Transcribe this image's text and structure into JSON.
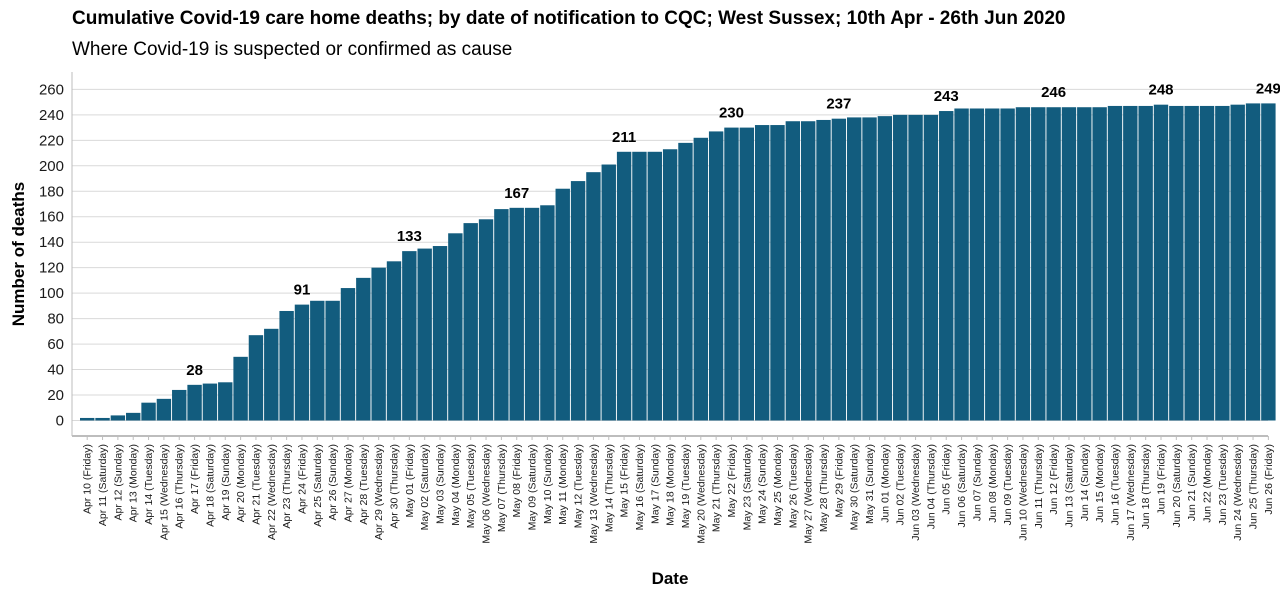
{
  "chart_data": {
    "type": "bar",
    "title": "Cumulative Covid-19 care home deaths; by date of notification to CQC; West Sussex; 10th Apr - 26th Jun 2020",
    "subtitle": "Where Covid-19 is suspected or confirmed as cause",
    "xlabel": "Date",
    "ylabel": "Number of deaths",
    "ylim": [
      0,
      270
    ],
    "yticks": [
      0,
      20,
      40,
      60,
      80,
      100,
      120,
      140,
      160,
      180,
      200,
      220,
      240,
      260
    ],
    "grid": true,
    "bar_color": "#125c7e",
    "categories": [
      "Apr 10 (Friday)",
      "Apr 11 (Saturday)",
      "Apr 12 (Sunday)",
      "Apr 13 (Monday)",
      "Apr 14 (Tuesday)",
      "Apr 15 (Wednesday)",
      "Apr 16 (Thursday)",
      "Apr 17 (Friday)",
      "Apr 18 (Saturday)",
      "Apr 19 (Sunday)",
      "Apr 20 (Monday)",
      "Apr 21 (Tuesday)",
      "Apr 22 (Wednesday)",
      "Apr 23 (Thursday)",
      "Apr 24 (Friday)",
      "Apr 25 (Saturday)",
      "Apr 26 (Sunday)",
      "Apr 27 (Monday)",
      "Apr 28 (Tuesday)",
      "Apr 29 (Wednesday)",
      "Apr 30 (Thursday)",
      "May 01 (Friday)",
      "May 02 (Saturday)",
      "May 03 (Sunday)",
      "May 04 (Monday)",
      "May 05 (Tuesday)",
      "May 06 (Wednesday)",
      "May 07 (Thursday)",
      "May 08 (Friday)",
      "May 09 (Saturday)",
      "May 10 (Sunday)",
      "May 11 (Monday)",
      "May 12 (Tuesday)",
      "May 13 (Wednesday)",
      "May 14 (Thursday)",
      "May 15 (Friday)",
      "May 16 (Saturday)",
      "May 17 (Sunday)",
      "May 18 (Monday)",
      "May 19 (Tuesday)",
      "May 20 (Wednesday)",
      "May 21 (Thursday)",
      "May 22 (Friday)",
      "May 23 (Saturday)",
      "May 24 (Sunday)",
      "May 25 (Monday)",
      "May 26 (Tuesday)",
      "May 27 (Wednesday)",
      "May 28 (Thursday)",
      "May 29 (Friday)",
      "May 30 (Saturday)",
      "May 31 (Sunday)",
      "Jun 01 (Monday)",
      "Jun 02 (Tuesday)",
      "Jun 03 (Wednesday)",
      "Jun 04 (Thursday)",
      "Jun 05 (Friday)",
      "Jun 06 (Saturday)",
      "Jun 07 (Sunday)",
      "Jun 08 (Monday)",
      "Jun 09 (Tuesday)",
      "Jun 10 (Wednesday)",
      "Jun 11 (Thursday)",
      "Jun 12 (Friday)",
      "Jun 13 (Saturday)",
      "Jun 14 (Sunday)",
      "Jun 15 (Monday)",
      "Jun 16 (Tuesday)",
      "Jun 17 (Wednesday)",
      "Jun 18 (Thursday)",
      "Jun 19 (Friday)",
      "Jun 20 (Saturday)",
      "Jun 21 (Sunday)",
      "Jun 22 (Monday)",
      "Jun 23 (Tuesday)",
      "Jun 24 (Wednesday)",
      "Jun 25 (Thursday)",
      "Jun 26 (Friday)"
    ],
    "values": [
      2,
      2,
      4,
      6,
      14,
      17,
      24,
      28,
      29,
      30,
      50,
      67,
      72,
      86,
      91,
      94,
      94,
      104,
      112,
      120,
      125,
      133,
      135,
      137,
      147,
      155,
      158,
      166,
      167,
      167,
      169,
      182,
      188,
      195,
      201,
      211,
      211,
      211,
      213,
      218,
      222,
      227,
      230,
      230,
      232,
      232,
      235,
      235,
      236,
      237,
      238,
      238,
      239,
      240,
      240,
      240,
      243,
      245,
      245,
      245,
      245,
      246,
      246,
      246,
      246,
      246,
      246,
      247,
      247,
      247,
      248,
      247,
      247,
      247,
      247,
      248,
      249,
      249
    ],
    "data_labels": [
      {
        "category": "Apr 17 (Friday)",
        "value": 28
      },
      {
        "category": "Apr 24 (Friday)",
        "value": 91
      },
      {
        "category": "May 01 (Friday)",
        "value": 133
      },
      {
        "category": "May 08 (Friday)",
        "value": 167
      },
      {
        "category": "May 15 (Friday)",
        "value": 211
      },
      {
        "category": "May 22 (Friday)",
        "value": 230
      },
      {
        "category": "May 29 (Friday)",
        "value": 237
      },
      {
        "category": "Jun 05 (Friday)",
        "value": 243
      },
      {
        "category": "Jun 12 (Friday)",
        "value": 246
      },
      {
        "category": "Jun 19 (Friday)",
        "value": 248
      },
      {
        "category": "Jun 26 (Friday)",
        "value": 249
      }
    ]
  }
}
